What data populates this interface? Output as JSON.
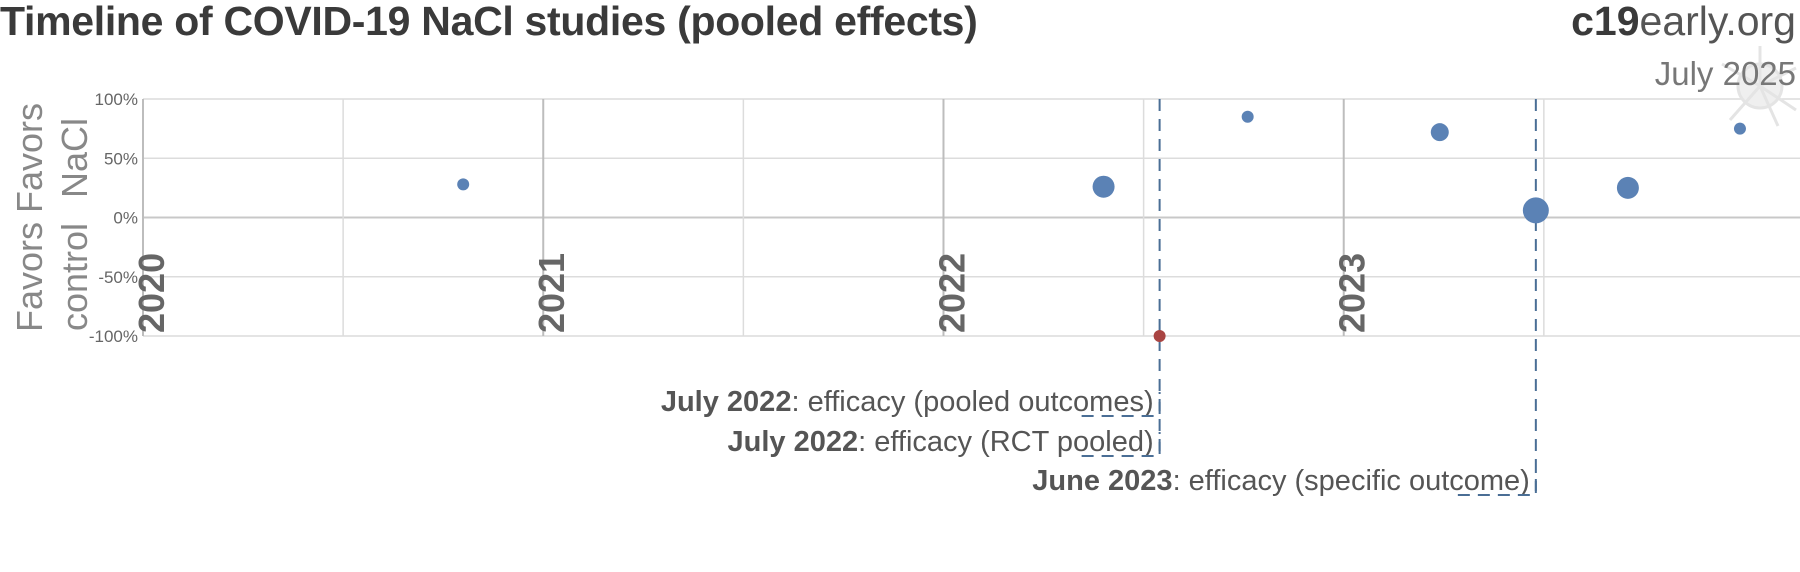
{
  "header": {
    "title": "Timeline of COVID-19 NaCl studies (pooled effects)",
    "brand_bold": "c19",
    "brand_rest": "early.org",
    "date": "July 2025"
  },
  "chart_data": {
    "type": "scatter",
    "title": "Timeline of COVID-19 NaCl studies (pooled effects)",
    "xlabel": "",
    "ylabel_top": [
      "Favors",
      "NaCl"
    ],
    "ylabel_bottom": [
      "Favors",
      "control"
    ],
    "ylim": [
      -100,
      100
    ],
    "yticks": [
      100,
      50,
      0,
      -50,
      -100
    ],
    "ytick_labels": [
      "100%",
      "50%",
      "0%",
      "-50%",
      "-100%"
    ],
    "year_labels": [
      "2020",
      "2021",
      "2022",
      "2023"
    ],
    "year_positions": [
      2020.0,
      2021.0,
      2022.0,
      2023.0
    ],
    "minor_grid": [
      2020.5,
      2021.5,
      2022.5,
      2023.5
    ],
    "xlim": [
      2020.0,
      2024.14
    ],
    "grid": true,
    "points": [
      {
        "date": "2020-10",
        "x": 2020.8,
        "value": 28,
        "size": "small",
        "color": "#5b82b5"
      },
      {
        "date": "2022-04",
        "x": 2022.4,
        "value": 26,
        "size": "large",
        "color": "#5b82b5"
      },
      {
        "date": "2022-07",
        "x": 2022.54,
        "value": -100,
        "size": "small",
        "color": "#a94442"
      },
      {
        "date": "2022-09",
        "x": 2022.76,
        "value": 85,
        "size": "small",
        "color": "#5b82b5"
      },
      {
        "date": "2023-02",
        "x": 2023.24,
        "value": 72,
        "size": "medium",
        "color": "#5b82b5"
      },
      {
        "date": "2023-06",
        "x": 2023.48,
        "value": 6,
        "size": "xlarge",
        "color": "#5b82b5"
      },
      {
        "date": "2023-10",
        "x": 2023.71,
        "value": 25,
        "size": "large",
        "color": "#5b82b5"
      },
      {
        "date": "2023-12",
        "x": 2023.99,
        "value": 75,
        "size": "small",
        "color": "#5b82b5"
      }
    ],
    "milestones": [
      {
        "x": 2022.54,
        "label_bold": "July 2022",
        "label_rest": ": efficacy (pooled outcomes)"
      },
      {
        "x": 2022.54,
        "label_bold": "July 2022",
        "label_rest": ": efficacy (RCT pooled)"
      },
      {
        "x": 2023.48,
        "label_bold": "June 2023",
        "label_rest": ": efficacy (specific outcome)"
      }
    ],
    "colors": {
      "positive": "#5b82b5",
      "negative": "#a94442",
      "grid": "#dcdcdc",
      "axis": "#bdbdbd",
      "milestone": "#4a6e95"
    }
  }
}
